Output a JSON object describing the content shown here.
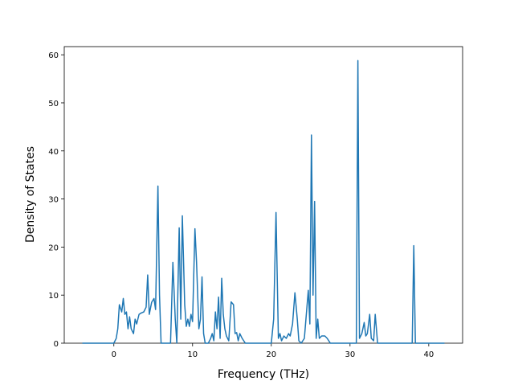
{
  "chart_data": {
    "type": "line",
    "xlabel": "Frequency (THz)",
    "ylabel": "Density of States",
    "x": [
      -4,
      0,
      0.3,
      0.5,
      0.7,
      0.9,
      1.0,
      1.2,
      1.4,
      1.6,
      1.8,
      2.0,
      2.2,
      2.5,
      2.7,
      2.9,
      3.2,
      3.5,
      3.8,
      4.1,
      4.3,
      4.5,
      4.8,
      5.1,
      5.3,
      5.6,
      5.8,
      6.0,
      7.2,
      7.5,
      7.8,
      8.0,
      8.3,
      8.5,
      8.7,
      9.0,
      9.2,
      9.4,
      9.6,
      9.8,
      10.0,
      10.3,
      10.5,
      10.8,
      11.0,
      11.2,
      11.4,
      11.6,
      12.0,
      12.3,
      12.5,
      12.7,
      12.9,
      13.1,
      13.3,
      13.5,
      13.7,
      13.9,
      14.1,
      14.3,
      14.6,
      14.9,
      15.2,
      15.4,
      15.6,
      15.8,
      16.0,
      16.3,
      16.7,
      20.0,
      20.3,
      20.6,
      20.9,
      21.1,
      21.3,
      21.6,
      21.9,
      22.2,
      22.4,
      22.7,
      23.0,
      23.3,
      23.5,
      23.8,
      24.2,
      24.5,
      24.7,
      24.9,
      25.1,
      25.3,
      25.5,
      25.7,
      25.9,
      26.1,
      26.4,
      26.8,
      27.1,
      27.5,
      30.8,
      31.0,
      31.2,
      31.5,
      31.8,
      32.0,
      32.2,
      32.5,
      32.7,
      33.0,
      33.2,
      33.5,
      37.9,
      38.1,
      38.3,
      42.0
    ],
    "series": [
      {
        "name": "DOS",
        "color": "#1f77b4",
        "values": [
          0,
          0,
          1,
          3,
          8,
          7,
          6.5,
          9.3,
          6,
          6.5,
          3,
          5.5,
          3,
          2,
          5,
          4,
          6,
          6.3,
          6.5,
          7.5,
          14.2,
          6,
          8.5,
          9.3,
          7,
          32.7,
          10,
          0,
          0,
          16.8,
          5,
          0,
          24,
          5,
          26.5,
          8,
          3.5,
          5,
          3.5,
          6,
          4.5,
          23.8,
          17,
          3,
          5,
          13.8,
          2,
          0,
          0,
          1,
          2,
          0.5,
          6.5,
          3,
          9.6,
          1,
          13.5,
          6,
          3,
          1.5,
          0.5,
          8.6,
          8,
          2,
          2.2,
          0.5,
          2,
          1,
          0,
          0,
          5,
          27.2,
          1,
          2,
          0.5,
          1.5,
          1,
          2,
          1.5,
          4,
          10.5,
          5,
          0.5,
          0,
          1,
          7,
          11,
          4,
          43.3,
          10,
          29.5,
          1,
          5,
          1,
          1.5,
          1.5,
          1,
          0,
          0,
          58.8,
          1,
          2,
          4.3,
          1.5,
          2,
          6,
          1,
          0.5,
          6,
          0,
          0,
          20.3,
          0,
          0
        ]
      }
    ],
    "xlim": [
      -6.3,
      44.3
    ],
    "ylim": [
      0,
      61.7
    ],
    "xticks": [
      0,
      10,
      20,
      30,
      40
    ],
    "yticks": [
      0,
      10,
      20,
      30,
      40,
      50,
      60
    ]
  }
}
